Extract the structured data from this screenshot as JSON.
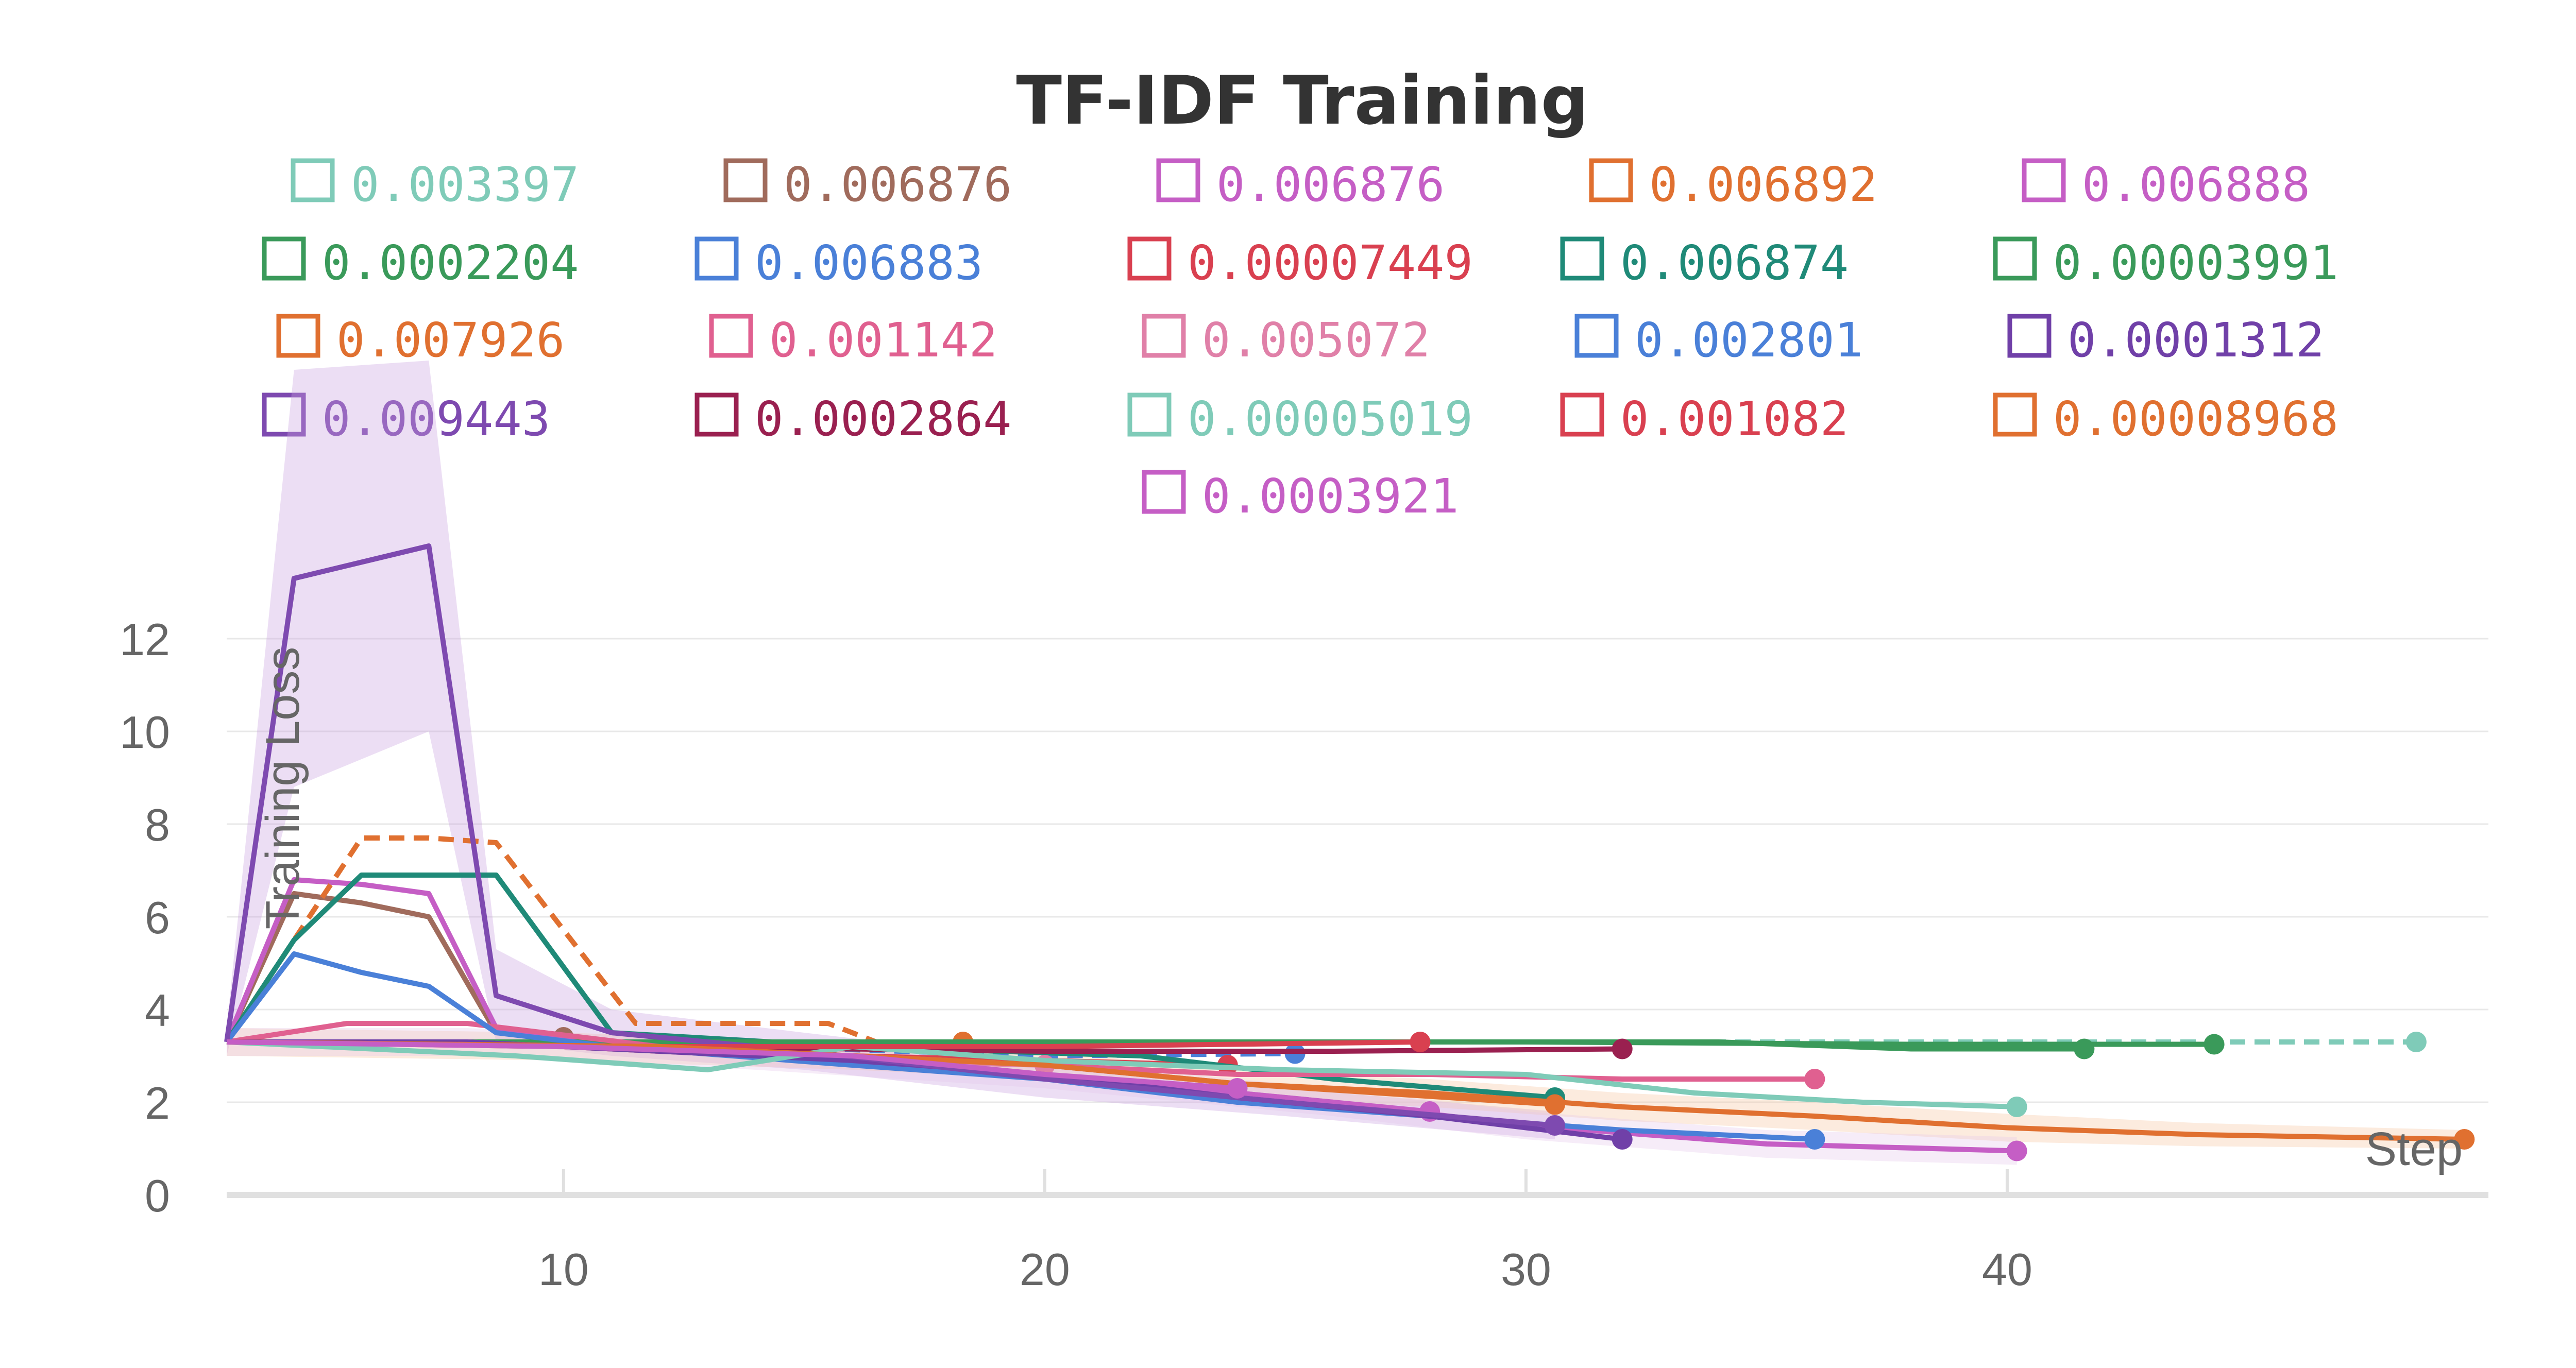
{
  "chart_data": {
    "type": "line",
    "title": "TF-IDF Training",
    "xlabel": "Step",
    "ylabel": "Training Loss",
    "xlim": [
      3,
      50
    ],
    "ylim": [
      0,
      14
    ],
    "x_ticks": [
      10,
      20,
      30,
      40
    ],
    "y_ticks": [
      0,
      2,
      4,
      6,
      8,
      10,
      12
    ],
    "grid": true,
    "legend_position": "top-center",
    "series": [
      {
        "name": "0.003397",
        "color": "#7fcbb8",
        "dashed": true,
        "x": [
          3,
          48.5
        ],
        "y": [
          3.3,
          3.3
        ]
      },
      {
        "name": "0.006876",
        "color": "#a06b5c",
        "dashed": false,
        "x": [
          3,
          4.4,
          5.8,
          7.2,
          8.6,
          10
        ],
        "y": [
          3.3,
          6.5,
          6.3,
          6.0,
          3.5,
          3.4
        ]
      },
      {
        "name": "0.006876",
        "color": "#c55ec5",
        "dashed": false,
        "x": [
          3,
          4.4,
          5.8,
          7.2,
          8.6,
          11,
          15,
          20,
          24,
          28
        ],
        "y": [
          3.3,
          6.8,
          6.7,
          6.5,
          3.6,
          3.2,
          3.0,
          2.6,
          2.2,
          1.8
        ]
      },
      {
        "name": "0.006892",
        "color": "#e07030",
        "dashed": true,
        "x": [
          3,
          4.4,
          5.8,
          7.2,
          8.6,
          11.5,
          15.5,
          16.5,
          18.3
        ],
        "y": [
          3.3,
          5.5,
          7.7,
          7.7,
          7.6,
          3.7,
          3.7,
          3.3,
          3.3
        ]
      },
      {
        "name": "0.006888",
        "color": "#c55ec5",
        "dashed": false,
        "x": [
          3,
          8,
          14,
          20,
          26,
          30,
          35,
          40.2
        ],
        "y": [
          3.3,
          3.3,
          3.0,
          2.6,
          2.0,
          1.5,
          1.1,
          0.95
        ]
      },
      {
        "name": "0.0002204",
        "color": "#3a9a5a",
        "dashed": false,
        "x": [
          3,
          12,
          20,
          28,
          34,
          38,
          41.6
        ],
        "y": [
          3.3,
          3.3,
          3.3,
          3.3,
          3.3,
          3.15,
          3.15
        ]
      },
      {
        "name": "0.006883",
        "color": "#4a80d8",
        "dashed": true,
        "x": [
          3,
          8,
          14,
          20,
          25.2
        ],
        "y": [
          3.3,
          3.3,
          3.2,
          3.0,
          3.05
        ]
      },
      {
        "name": "0.00007449",
        "color": "#d94050",
        "dashed": false,
        "x": [
          3,
          8,
          12,
          16,
          20,
          23.8
        ],
        "y": [
          3.3,
          3.3,
          3.1,
          3.0,
          2.9,
          2.8
        ]
      },
      {
        "name": "0.006874",
        "color": "#1f8a78",
        "dashed": false,
        "x": [
          3,
          4.4,
          5.8,
          7.2,
          8.6,
          11,
          16,
          22,
          26,
          30.6
        ],
        "y": [
          3.3,
          5.5,
          6.9,
          6.9,
          6.9,
          3.5,
          3.2,
          3.0,
          2.5,
          2.1
        ]
      },
      {
        "name": "0.00003991",
        "color": "#3a9a5a",
        "dashed": false,
        "x": [
          3,
          10,
          20,
          30,
          38,
          44.3
        ],
        "y": [
          3.3,
          3.3,
          3.3,
          3.3,
          3.25,
          3.25
        ]
      },
      {
        "name": "0.007926",
        "color": "#e07030",
        "dashed": false,
        "x": [
          3,
          10,
          16,
          20,
          24,
          28,
          32,
          36,
          40,
          44,
          49.5
        ],
        "y": [
          3.3,
          3.2,
          3.0,
          2.8,
          2.4,
          2.2,
          1.9,
          1.7,
          1.45,
          1.3,
          1.2
        ]
      },
      {
        "name": "0.001142",
        "color": "#e06090",
        "dashed": false,
        "x": [
          3,
          5.5,
          8,
          12,
          16,
          20,
          24,
          28,
          32,
          36
        ],
        "y": [
          3.3,
          3.7,
          3.7,
          3.2,
          3.0,
          2.8,
          2.6,
          2.6,
          2.5,
          2.5
        ]
      },
      {
        "name": "0.005072",
        "color": "#e080a8",
        "dashed": false,
        "x": [
          3,
          8,
          12,
          16,
          20
        ],
        "y": [
          3.3,
          3.3,
          3.1,
          2.9,
          2.8
        ]
      },
      {
        "name": "0.002801",
        "color": "#4a80d8",
        "dashed": false,
        "x": [
          3,
          4.4,
          5.8,
          7.2,
          8.6,
          11,
          16,
          20,
          24,
          28,
          32,
          36
        ],
        "y": [
          3.3,
          5.2,
          4.8,
          4.5,
          3.5,
          3.2,
          2.8,
          2.5,
          2.0,
          1.7,
          1.4,
          1.2
        ]
      },
      {
        "name": "0.0001312",
        "color": "#7040a8",
        "dashed": false,
        "x": [
          3,
          8,
          12,
          16,
          20,
          24,
          28,
          32
        ],
        "y": [
          3.3,
          3.3,
          3.1,
          2.9,
          2.6,
          2.1,
          1.7,
          1.2
        ]
      },
      {
        "name": "0.009443",
        "color": "#7e4ab0",
        "dashed": false,
        "x": [
          3,
          4.4,
          7.2,
          8.6,
          11,
          15,
          20,
          25,
          30.6
        ],
        "y": [
          3.3,
          13.3,
          14.0,
          4.3,
          3.5,
          3.1,
          2.5,
          2.0,
          1.5
        ]
      },
      {
        "name": "0.0002864",
        "color": "#9a2050",
        "dashed": false,
        "x": [
          3,
          12,
          20,
          26,
          32
        ],
        "y": [
          3.3,
          3.2,
          3.1,
          3.1,
          3.15
        ]
      },
      {
        "name": "0.00005019",
        "color": "#7fcbb8",
        "dashed": false,
        "x": [
          3,
          7,
          9,
          13,
          16,
          20,
          25,
          30,
          33.5,
          37,
          40.2
        ],
        "y": [
          3.3,
          3.1,
          3.0,
          2.7,
          3.2,
          2.9,
          2.7,
          2.6,
          2.2,
          2.0,
          1.9
        ]
      },
      {
        "name": "0.001082",
        "color": "#d94050",
        "dashed": false,
        "x": [
          3,
          12,
          20,
          27.8
        ],
        "y": [
          3.3,
          3.2,
          3.2,
          3.3
        ]
      },
      {
        "name": "0.00008968",
        "color": "#e07030",
        "dashed": false,
        "x": [
          3,
          12,
          20,
          24,
          30.6
        ],
        "y": [
          3.3,
          3.2,
          2.8,
          2.4,
          1.95
        ]
      },
      {
        "name": "0.0003921",
        "color": "#c55ec5",
        "dashed": false,
        "x": [
          3,
          10,
          16,
          20,
          24
        ],
        "y": [
          3.3,
          3.2,
          3.0,
          2.6,
          2.3
        ]
      }
    ]
  }
}
